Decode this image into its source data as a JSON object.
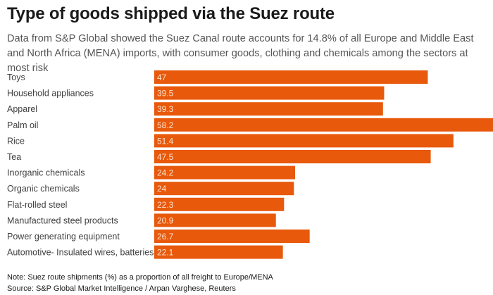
{
  "title": "Type of goods shipped via the Suez route",
  "subtitle": "Data from S&P Global showed the Suez Canal route accounts for 14.8% of all Europe and Middle East and North Africa (MENA) imports, with consumer goods, clothing and chemicals among the sectors at most risk",
  "note": "Note: Suez route shipments (%) as a proportion of all freight to Europe/MENA",
  "source": "Source: S&P Global Market Intelligence / Arpan Varghese, Reuters",
  "colors": {
    "bar": "#e8590c",
    "bar_label": "#fde3d0",
    "category_text": "#404040"
  },
  "chart_data": {
    "type": "bar",
    "orientation": "horizontal",
    "categories": [
      "Toys",
      "Household appliances",
      "Apparel",
      "Palm oil",
      "Rice",
      "Tea",
      "Inorganic chemicals",
      "Organic chemicals",
      "Flat-rolled steel",
      "Manufactured steel products",
      "Power generating equipment",
      "Automotive- Insulated wires, batteries"
    ],
    "values": [
      47,
      39.5,
      39.3,
      58.2,
      51.4,
      47.5,
      24.2,
      24,
      22.3,
      20.9,
      26.7,
      22.1
    ],
    "value_labels": [
      "47",
      "39.5",
      "39.3",
      "58.2",
      "51.4",
      "47.5",
      "24.2",
      "24",
      "22.3",
      "20.9",
      "26.7",
      "22.1"
    ],
    "xlim": [
      0,
      58.2
    ],
    "grid": false,
    "legend": "none",
    "data_labels": "inside-left"
  }
}
